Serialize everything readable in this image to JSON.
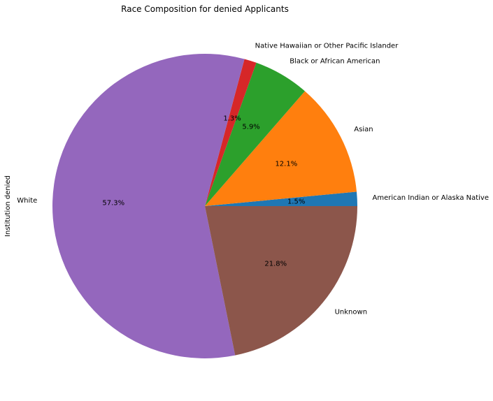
{
  "chart_data": {
    "type": "pie",
    "title": "Race Composition for denied Applicants",
    "ylabel": "Institution denied",
    "slices": [
      {
        "label": "American Indian or Alaska Native",
        "value": 1.5,
        "pct_label": "1.5%",
        "color": "#1f77b4"
      },
      {
        "label": "Asian",
        "value": 12.1,
        "pct_label": "12.1%",
        "color": "#ff7f0e"
      },
      {
        "label": "Black or African American",
        "value": 5.9,
        "pct_label": "5.9%",
        "color": "#2ca02c"
      },
      {
        "label": "Native Hawaiian or Other Pacific Islander",
        "value": 1.3,
        "pct_label": "1.3%",
        "color": "#d62728"
      },
      {
        "label": "White",
        "value": 57.3,
        "pct_label": "57.3%",
        "color": "#9467bd"
      },
      {
        "label": "Unknown",
        "value": 21.8,
        "pct_label": "21.8%",
        "color": "#8c564b"
      }
    ],
    "start_angle_deg": 0,
    "direction": "counterclockwise"
  }
}
